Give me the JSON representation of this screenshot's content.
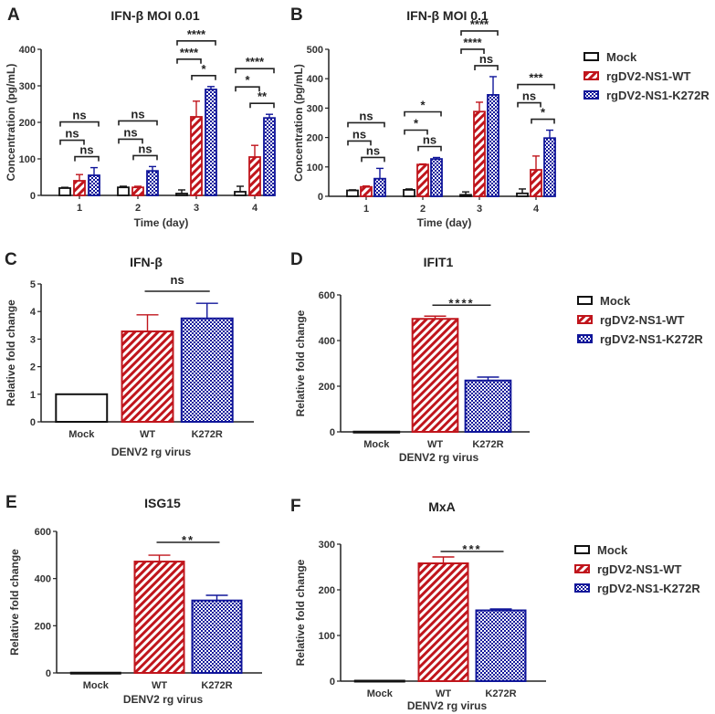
{
  "colors": {
    "mock": "#111111",
    "wt": "#c0151c",
    "k272r": "#10169a"
  },
  "legend": {
    "items": [
      {
        "label": "Mock",
        "key": "mock"
      },
      {
        "label": "rgDV2-NS1-WT",
        "key": "wt"
      },
      {
        "label": "rgDV2-NS1-K272R",
        "key": "k272r"
      }
    ]
  },
  "chart_data": [
    {
      "id": "A",
      "type": "bar",
      "title": "IFN-β MOI 0.01",
      "xlabel": "Time (day)",
      "ylabel": "Concentration (pg/mL)",
      "ylim": [
        0,
        400
      ],
      "yticks": [
        0,
        100,
        200,
        300,
        400
      ],
      "categories": [
        "1",
        "2",
        "3",
        "4"
      ],
      "series": [
        {
          "name": "Mock",
          "values": [
            20,
            22,
            5,
            10
          ],
          "errors": [
            2,
            3,
            10,
            15
          ]
        },
        {
          "name": "rgDV2-NS1-WT",
          "values": [
            40,
            22,
            215,
            105
          ],
          "errors": [
            17,
            3,
            43,
            32
          ]
        },
        {
          "name": "rgDV2-NS1-K272R",
          "values": [
            55,
            67,
            290,
            212
          ],
          "errors": [
            21,
            12,
            8,
            10
          ]
        }
      ],
      "annotations": [
        {
          "cat": 0,
          "from": 0,
          "to": 1,
          "label": "ns"
        },
        {
          "cat": 0,
          "from": 0,
          "to": 2,
          "label": "ns"
        },
        {
          "cat": 0,
          "from": 1,
          "to": 2,
          "label": "ns"
        },
        {
          "cat": 1,
          "from": 0,
          "to": 1,
          "label": "ns"
        },
        {
          "cat": 1,
          "from": 0,
          "to": 2,
          "label": "ns"
        },
        {
          "cat": 1,
          "from": 1,
          "to": 2,
          "label": "ns"
        },
        {
          "cat": 2,
          "from": 0,
          "to": 1,
          "label": "****"
        },
        {
          "cat": 2,
          "from": 0,
          "to": 2,
          "label": "****"
        },
        {
          "cat": 2,
          "from": 1,
          "to": 2,
          "label": "*"
        },
        {
          "cat": 3,
          "from": 0,
          "to": 1,
          "label": "*"
        },
        {
          "cat": 3,
          "from": 0,
          "to": 2,
          "label": "****"
        },
        {
          "cat": 3,
          "from": 1,
          "to": 2,
          "label": "**"
        }
      ]
    },
    {
      "id": "B",
      "type": "bar",
      "title": "IFN-β MOI 0.1",
      "xlabel": "Time (day)",
      "ylabel": "Concentration (pg/mL)",
      "ylim": [
        0,
        500
      ],
      "yticks": [
        0,
        100,
        200,
        300,
        400,
        500
      ],
      "categories": [
        "1",
        "2",
        "3",
        "4"
      ],
      "series": [
        {
          "name": "Mock",
          "values": [
            20,
            22,
            5,
            10
          ],
          "errors": [
            2,
            3,
            10,
            15
          ]
        },
        {
          "name": "rgDV2-NS1-WT",
          "values": [
            32,
            108,
            288,
            90
          ],
          "errors": [
            3,
            2,
            32,
            47
          ]
        },
        {
          "name": "rgDV2-NS1-K272R",
          "values": [
            60,
            127,
            345,
            198
          ],
          "errors": [
            35,
            5,
            62,
            27
          ]
        }
      ],
      "annotations": [
        {
          "cat": 0,
          "from": 0,
          "to": 1,
          "label": "ns"
        },
        {
          "cat": 0,
          "from": 0,
          "to": 2,
          "label": "ns"
        },
        {
          "cat": 0,
          "from": 1,
          "to": 2,
          "label": "ns"
        },
        {
          "cat": 1,
          "from": 0,
          "to": 1,
          "label": "*"
        },
        {
          "cat": 1,
          "from": 0,
          "to": 2,
          "label": "*"
        },
        {
          "cat": 1,
          "from": 1,
          "to": 2,
          "label": "ns"
        },
        {
          "cat": 2,
          "from": 0,
          "to": 1,
          "label": "****"
        },
        {
          "cat": 2,
          "from": 0,
          "to": 2,
          "label": "****"
        },
        {
          "cat": 2,
          "from": 1,
          "to": 2,
          "label": "ns"
        },
        {
          "cat": 3,
          "from": 0,
          "to": 1,
          "label": "ns"
        },
        {
          "cat": 3,
          "from": 0,
          "to": 2,
          "label": "***"
        },
        {
          "cat": 3,
          "from": 1,
          "to": 2,
          "label": "*"
        }
      ]
    },
    {
      "id": "C",
      "type": "bar",
      "title": "IFN-β",
      "xlabel": "DENV2 rg virus",
      "ylabel": "Relative fold change",
      "ylim": [
        0,
        5
      ],
      "yticks": [
        0,
        1,
        2,
        3,
        4,
        5
      ],
      "categories": [
        "Mock",
        "WT",
        "K272R"
      ],
      "values": [
        1,
        3.28,
        3.75
      ],
      "errors": [
        0,
        0.6,
        0.55
      ],
      "significance": {
        "from": 1,
        "to": 2,
        "label": "ns"
      }
    },
    {
      "id": "D",
      "type": "bar",
      "title": "IFIT1",
      "xlabel": "DENV2 rg virus",
      "ylabel": "Relative fold change",
      "ylim": [
        0,
        600
      ],
      "yticks": [
        0,
        200,
        400,
        600
      ],
      "categories": [
        "Mock",
        "WT",
        "K272R"
      ],
      "values": [
        1,
        495,
        225
      ],
      "errors": [
        0,
        12,
        15
      ],
      "significance": {
        "from": 1,
        "to": 2,
        "label": "****"
      }
    },
    {
      "id": "E",
      "type": "bar",
      "title": "ISG15",
      "xlabel": "DENV2 rg virus",
      "ylabel": "Relative fold change",
      "ylim": [
        0,
        600
      ],
      "yticks": [
        0,
        200,
        400,
        600
      ],
      "categories": [
        "Mock",
        "WT",
        "K272R"
      ],
      "values": [
        1,
        472,
        307
      ],
      "errors": [
        0,
        27,
        22
      ],
      "significance": {
        "from": 1,
        "to": 2,
        "label": "**"
      }
    },
    {
      "id": "F",
      "type": "bar",
      "title": "MxA",
      "xlabel": "DENV2 rg virus",
      "ylabel": "Relative fold change",
      "ylim": [
        0,
        300
      ],
      "yticks": [
        0,
        100,
        200,
        300
      ],
      "categories": [
        "Mock",
        "WT",
        "K272R"
      ],
      "values": [
        1,
        258,
        155
      ],
      "errors": [
        0,
        14,
        3
      ],
      "significance": {
        "from": 1,
        "to": 2,
        "label": "***"
      }
    }
  ]
}
